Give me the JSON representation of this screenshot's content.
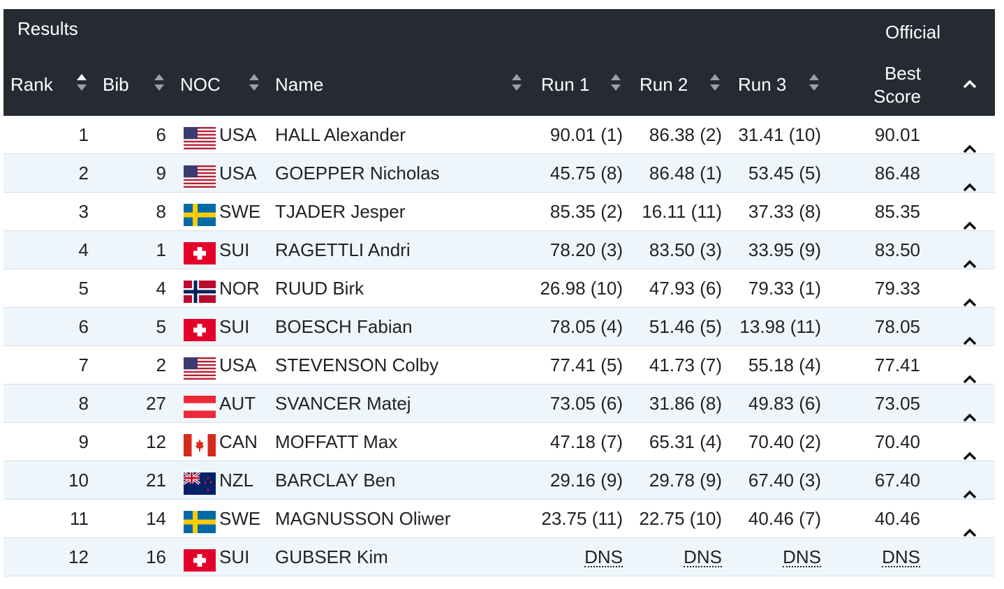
{
  "header": {
    "title": "Results",
    "official": "Official",
    "columns": {
      "rank": "Rank",
      "bib": "Bib",
      "noc": "NOC",
      "name": "Name",
      "run1": "Run 1",
      "run2": "Run 2",
      "run3": "Run 3",
      "best_line1": "Best",
      "best_line2": "Score"
    }
  },
  "colors": {
    "header_bg": "#262b33",
    "row_alt": "#eef6fb",
    "border": "#d9dde2"
  },
  "rows": [
    {
      "rank": "1",
      "bib": "6",
      "noc": "USA",
      "name": "HALL Alexander",
      "run1": "90.01 (1)",
      "run2": "86.38 (2)",
      "run3": "31.41 (10)",
      "best": "90.01"
    },
    {
      "rank": "2",
      "bib": "9",
      "noc": "USA",
      "name": "GOEPPER Nicholas",
      "run1": "45.75 (8)",
      "run2": "86.48 (1)",
      "run3": "53.45 (5)",
      "best": "86.48"
    },
    {
      "rank": "3",
      "bib": "8",
      "noc": "SWE",
      "name": "TJADER Jesper",
      "run1": "85.35 (2)",
      "run2": "16.11 (11)",
      "run3": "37.33 (8)",
      "best": "85.35"
    },
    {
      "rank": "4",
      "bib": "1",
      "noc": "SUI",
      "name": "RAGETTLI Andri",
      "run1": "78.20 (3)",
      "run2": "83.50 (3)",
      "run3": "33.95 (9)",
      "best": "83.50"
    },
    {
      "rank": "5",
      "bib": "4",
      "noc": "NOR",
      "name": "RUUD Birk",
      "run1": "26.98 (10)",
      "run2": "47.93 (6)",
      "run3": "79.33 (1)",
      "best": "79.33"
    },
    {
      "rank": "6",
      "bib": "5",
      "noc": "SUI",
      "name": "BOESCH Fabian",
      "run1": "78.05 (4)",
      "run2": "51.46 (5)",
      "run3": "13.98 (11)",
      "best": "78.05"
    },
    {
      "rank": "7",
      "bib": "2",
      "noc": "USA",
      "name": "STEVENSON Colby",
      "run1": "77.41 (5)",
      "run2": "41.73 (7)",
      "run3": "55.18 (4)",
      "best": "77.41"
    },
    {
      "rank": "8",
      "bib": "27",
      "noc": "AUT",
      "name": "SVANCER Matej",
      "run1": "73.05 (6)",
      "run2": "31.86 (8)",
      "run3": "49.83 (6)",
      "best": "73.05"
    },
    {
      "rank": "9",
      "bib": "12",
      "noc": "CAN",
      "name": "MOFFATT Max",
      "run1": "47.18 (7)",
      "run2": "65.31 (4)",
      "run3": "70.40 (2)",
      "best": "70.40"
    },
    {
      "rank": "10",
      "bib": "21",
      "noc": "NZL",
      "name": "BARCLAY Ben",
      "run1": "29.16 (9)",
      "run2": "29.78 (9)",
      "run3": "67.40 (3)",
      "best": "67.40"
    },
    {
      "rank": "11",
      "bib": "14",
      "noc": "SWE",
      "name": "MAGNUSSON Oliwer",
      "run1": "23.75 (11)",
      "run2": "22.75 (10)",
      "run3": "40.46 (7)",
      "best": "40.46"
    },
    {
      "rank": "12",
      "bib": "16",
      "noc": "SUI",
      "name": "GUBSER Kim",
      "run1": "DNS",
      "run2": "DNS",
      "run3": "DNS",
      "best": "DNS"
    }
  ]
}
